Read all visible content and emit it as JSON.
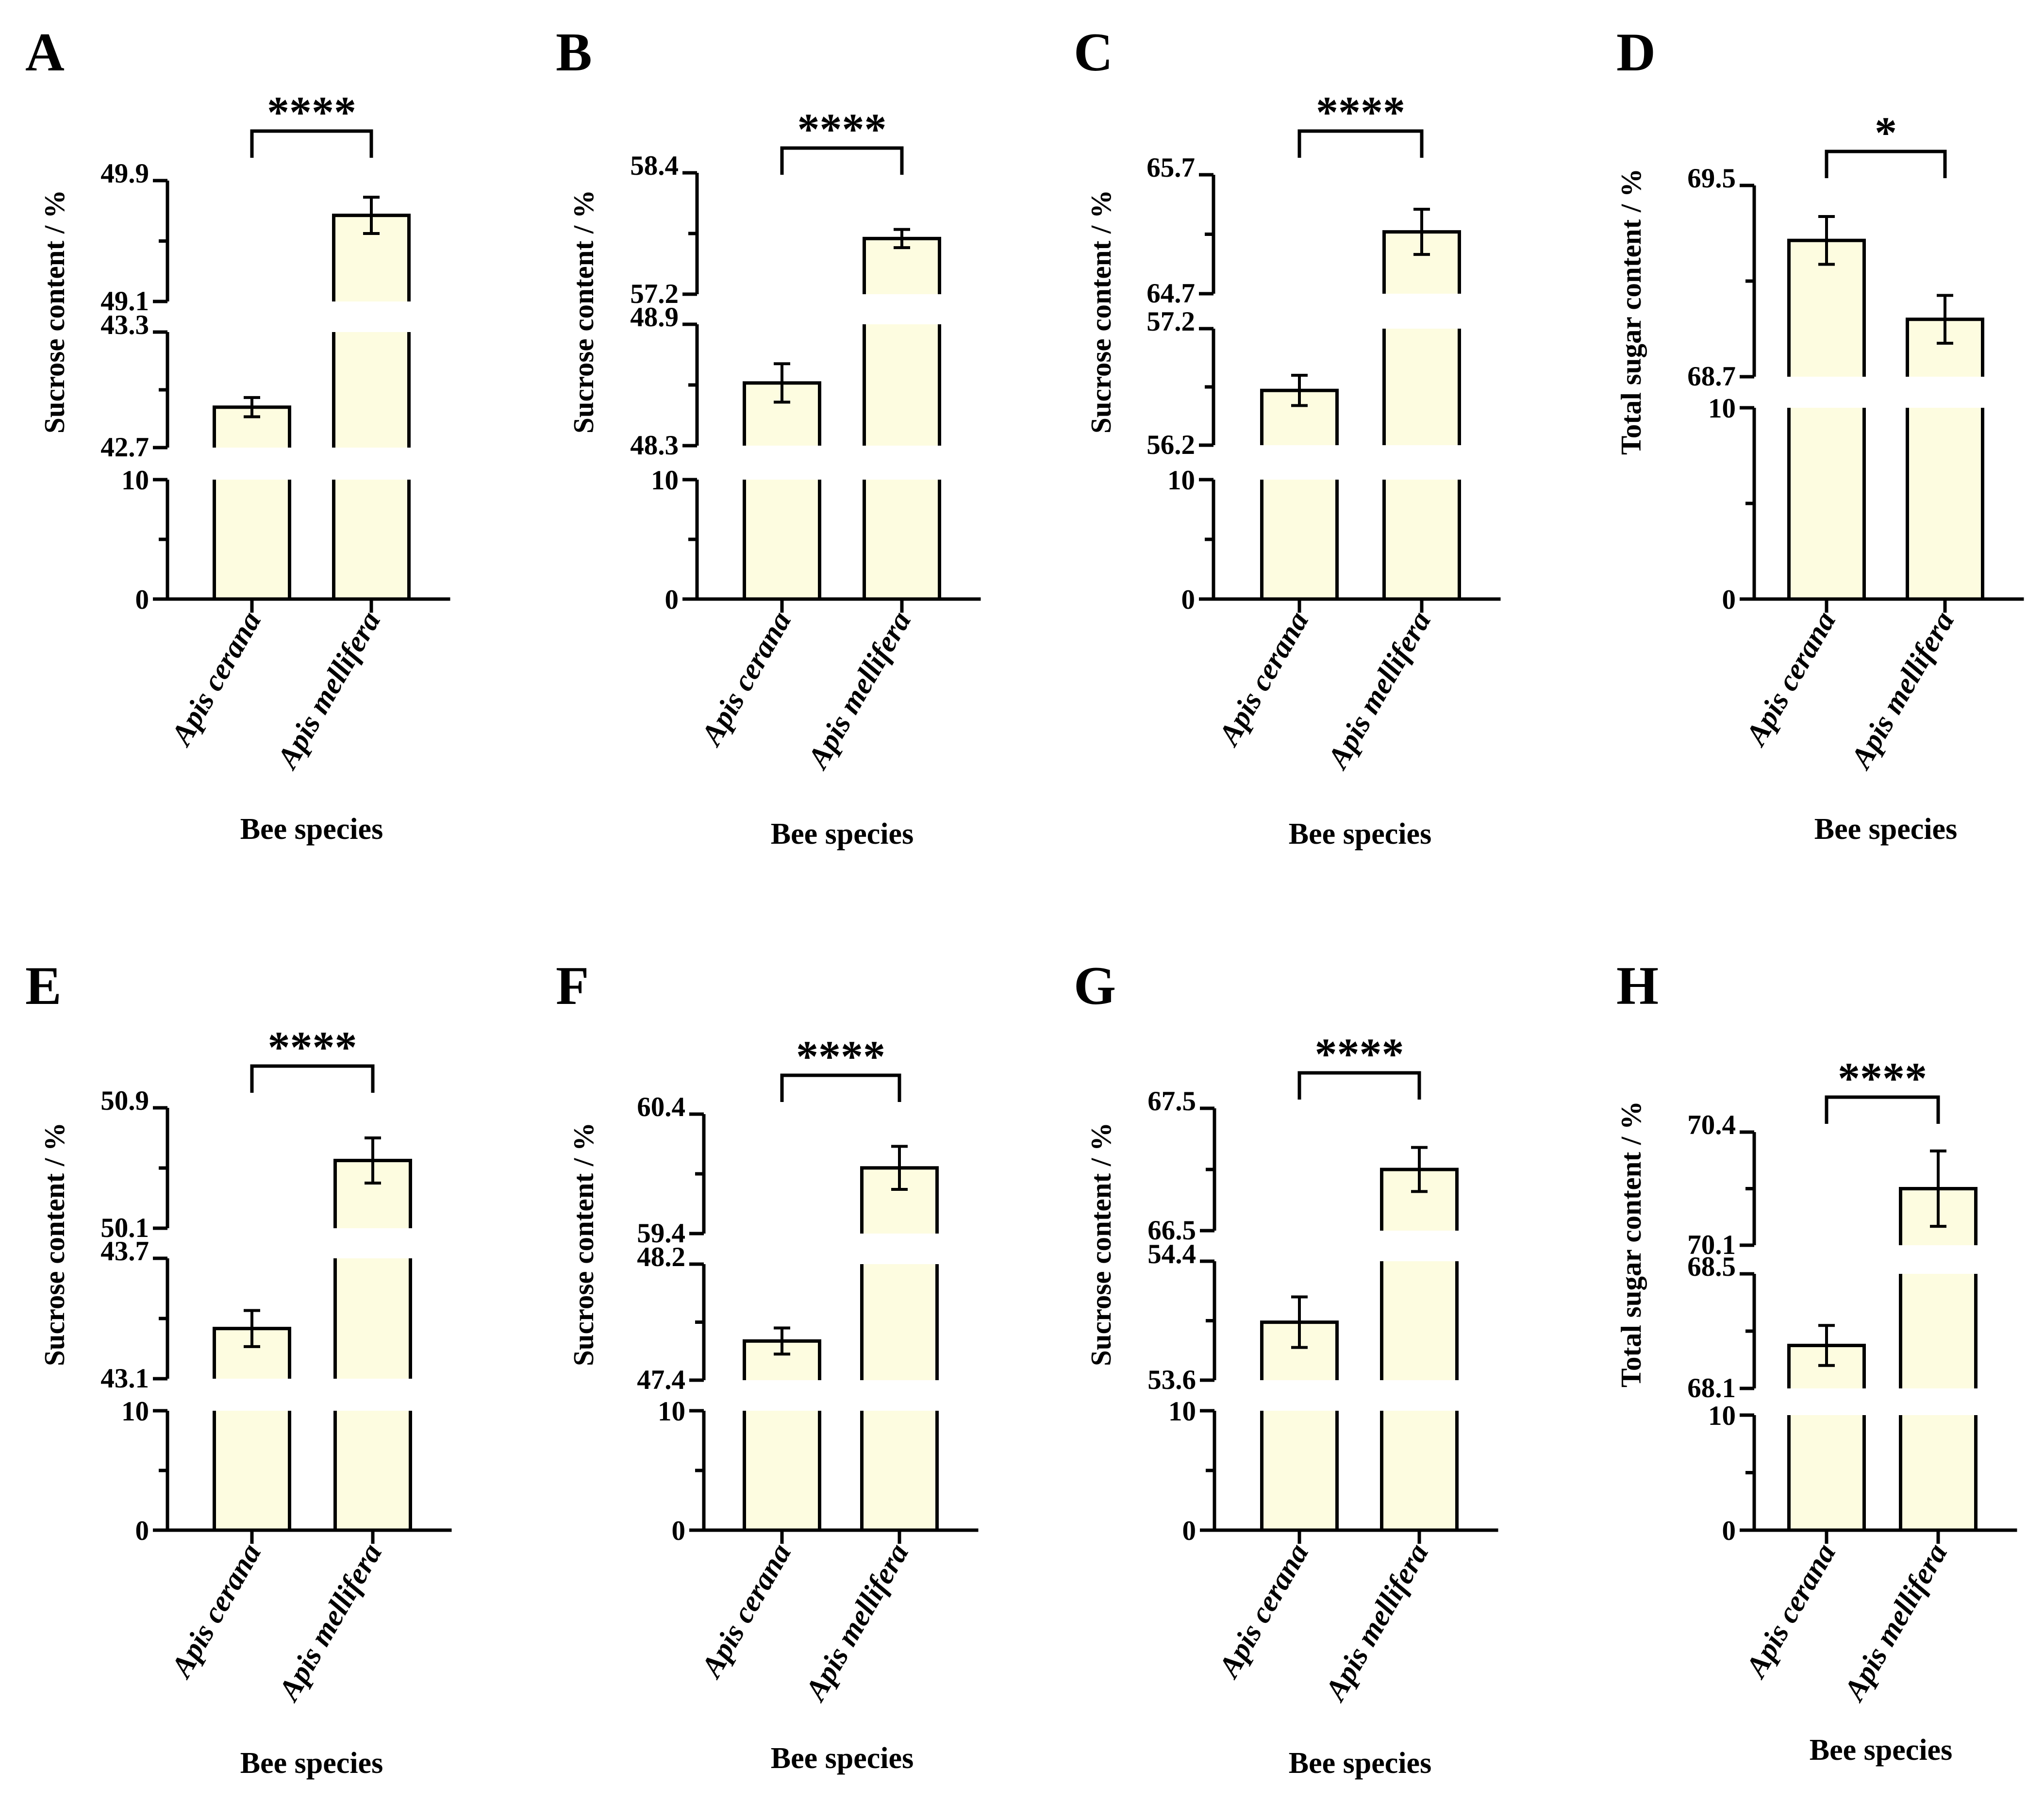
{
  "colors": {
    "bar_fill": "#fdfce0",
    "stroke": "#000000",
    "background": "#ffffff"
  },
  "chart_data": [
    {
      "panel": "A",
      "type": "bar",
      "title": "",
      "xlabel": "Bee species",
      "ylabel": "Sucrose content / %",
      "categories": [
        "Apis cerana",
        "Apis mellifera"
      ],
      "values": [
        42.91,
        49.67
      ],
      "errors": [
        0.05,
        0.12
      ],
      "significance": "****",
      "y_axis_segments": [
        {
          "range": [
            0,
            10
          ],
          "ticks": [
            "0",
            "10"
          ]
        },
        {
          "range": [
            42.7,
            43.3
          ],
          "ticks": [
            "42.7",
            "43.3"
          ]
        },
        {
          "range": [
            49.1,
            49.9
          ],
          "ticks": [
            "49.1",
            "49.9"
          ]
        }
      ]
    },
    {
      "panel": "B",
      "type": "bar",
      "title": "",
      "xlabel": "Bee species",
      "ylabel": "Sucrose content / %",
      "categories": [
        "Apis cerana",
        "Apis mellifera"
      ],
      "values": [
        48.61,
        57.75
      ],
      "errors": [
        0.095,
        0.09
      ],
      "significance": "****",
      "y_axis_segments": [
        {
          "range": [
            0,
            10
          ],
          "ticks": [
            "0",
            "10"
          ]
        },
        {
          "range": [
            48.3,
            48.9
          ],
          "ticks": [
            "48.3",
            "48.9"
          ]
        },
        {
          "range": [
            57.2,
            58.4
          ],
          "ticks": [
            "57.2",
            "58.4"
          ]
        }
      ]
    },
    {
      "panel": "C",
      "type": "bar",
      "title": "",
      "xlabel": "Bee species",
      "ylabel": "Sucrose content / %",
      "categories": [
        "Apis cerana",
        "Apis mellifera"
      ],
      "values": [
        56.67,
        65.22
      ],
      "errors": [
        0.13,
        0.19
      ],
      "significance": "****",
      "y_axis_segments": [
        {
          "range": [
            0,
            10
          ],
          "ticks": [
            "0",
            "10"
          ]
        },
        {
          "range": [
            56.2,
            57.2
          ],
          "ticks": [
            "56.2",
            "57.2"
          ]
        },
        {
          "range": [
            64.7,
            65.7
          ],
          "ticks": [
            "64.7",
            "65.7"
          ]
        }
      ]
    },
    {
      "panel": "D",
      "type": "bar",
      "title": "",
      "xlabel": "Bee species",
      "ylabel": "Total sugar content / %",
      "categories": [
        "Apis cerana",
        "Apis mellifera"
      ],
      "values": [
        69.27,
        68.94
      ],
      "errors": [
        0.1,
        0.1
      ],
      "significance": "*",
      "y_axis_segments": [
        {
          "range": [
            0,
            10
          ],
          "ticks": [
            "0",
            "10"
          ]
        },
        {
          "range": [
            68.7,
            69.5
          ],
          "ticks": [
            "68.7",
            "69.5"
          ]
        }
      ]
    },
    {
      "panel": "E",
      "type": "bar",
      "title": "",
      "xlabel": "Bee species",
      "ylabel": "Sucrose content / %",
      "categories": [
        "Apis cerana",
        "Apis mellifera"
      ],
      "values": [
        43.35,
        50.55
      ],
      "errors": [
        0.09,
        0.15
      ],
      "significance": "****",
      "y_axis_segments": [
        {
          "range": [
            0,
            10
          ],
          "ticks": [
            "0",
            "10"
          ]
        },
        {
          "range": [
            43.1,
            43.7
          ],
          "ticks": [
            "43.1",
            "43.7"
          ]
        },
        {
          "range": [
            50.1,
            50.9
          ],
          "ticks": [
            "50.1",
            "50.9"
          ]
        }
      ]
    },
    {
      "panel": "F",
      "type": "bar",
      "title": "",
      "xlabel": "Bee species",
      "ylabel": "Sucrose content / %",
      "categories": [
        "Apis cerana",
        "Apis mellifera"
      ],
      "values": [
        47.67,
        59.95
      ],
      "errors": [
        0.09,
        0.18
      ],
      "significance": "****",
      "y_axis_segments": [
        {
          "range": [
            0,
            10
          ],
          "ticks": [
            "0",
            "10"
          ]
        },
        {
          "range": [
            47.4,
            48.2
          ],
          "ticks": [
            "47.4",
            "48.2"
          ]
        },
        {
          "range": [
            59.4,
            60.4
          ],
          "ticks": [
            "59.4",
            "60.4"
          ]
        }
      ]
    },
    {
      "panel": "G",
      "type": "bar",
      "title": "",
      "xlabel": "Bee species",
      "ylabel": "Sucrose content / %",
      "categories": [
        "Apis cerana",
        "Apis mellifera"
      ],
      "values": [
        53.99,
        67.0
      ],
      "errors": [
        0.17,
        0.18
      ],
      "significance": "****",
      "y_axis_segments": [
        {
          "range": [
            0,
            10
          ],
          "ticks": [
            "0",
            "10"
          ]
        },
        {
          "range": [
            53.6,
            54.4
          ],
          "ticks": [
            "53.6",
            "54.4"
          ]
        },
        {
          "range": [
            66.5,
            67.5
          ],
          "ticks": [
            "66.5",
            "67.5"
          ]
        }
      ]
    },
    {
      "panel": "H",
      "type": "bar",
      "title": "",
      "xlabel": "Bee species",
      "ylabel": "Total sugar content / %",
      "categories": [
        "Apis cerana",
        "Apis mellifera"
      ],
      "values": [
        68.25,
        70.25
      ],
      "errors": [
        0.07,
        0.1
      ],
      "significance": "****",
      "y_axis_segments": [
        {
          "range": [
            0,
            10
          ],
          "ticks": [
            "0",
            "10"
          ]
        },
        {
          "range": [
            68.1,
            68.5
          ],
          "ticks": [
            "68.1",
            "68.5"
          ]
        },
        {
          "range": [
            70.1,
            70.4
          ],
          "ticks": [
            "70.1",
            "70.4"
          ]
        }
      ]
    }
  ]
}
